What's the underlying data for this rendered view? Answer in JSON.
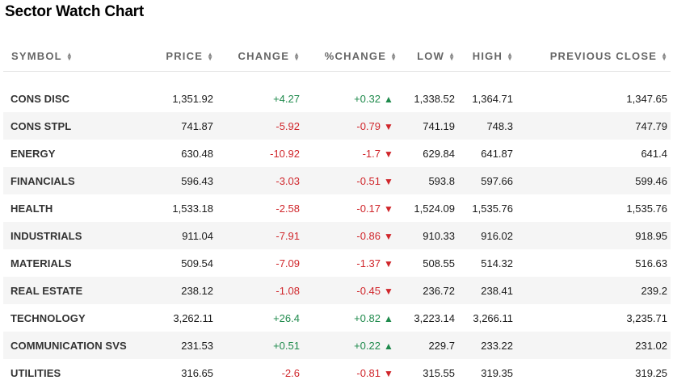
{
  "title": "Sector Watch Chart",
  "columns": {
    "symbol": "SYMBOL",
    "price": "PRICE",
    "change": "CHANGE",
    "pct_change": "%CHANGE",
    "low": "LOW",
    "high": "HIGH",
    "prev_close": "PREVIOUS CLOSE"
  },
  "rows": [
    {
      "symbol": "CONS DISC",
      "price": "1,351.92",
      "change": "+4.27",
      "pct": "+0.32",
      "low": "1,338.52",
      "high": "1,364.71",
      "prev": "1,347.65",
      "dir": "up"
    },
    {
      "symbol": "CONS STPL",
      "price": "741.87",
      "change": "-5.92",
      "pct": "-0.79",
      "low": "741.19",
      "high": "748.3",
      "prev": "747.79",
      "dir": "down"
    },
    {
      "symbol": "ENERGY",
      "price": "630.48",
      "change": "-10.92",
      "pct": "-1.7",
      "low": "629.84",
      "high": "641.87",
      "prev": "641.4",
      "dir": "down"
    },
    {
      "symbol": "FINANCIALS",
      "price": "596.43",
      "change": "-3.03",
      "pct": "-0.51",
      "low": "593.8",
      "high": "597.66",
      "prev": "599.46",
      "dir": "down"
    },
    {
      "symbol": "HEALTH",
      "price": "1,533.18",
      "change": "-2.58",
      "pct": "-0.17",
      "low": "1,524.09",
      "high": "1,535.76",
      "prev": "1,535.76",
      "dir": "down"
    },
    {
      "symbol": "INDUSTRIALS",
      "price": "911.04",
      "change": "-7.91",
      "pct": "-0.86",
      "low": "910.33",
      "high": "916.02",
      "prev": "918.95",
      "dir": "down"
    },
    {
      "symbol": "MATERIALS",
      "price": "509.54",
      "change": "-7.09",
      "pct": "-1.37",
      "low": "508.55",
      "high": "514.32",
      "prev": "516.63",
      "dir": "down"
    },
    {
      "symbol": "REAL ESTATE",
      "price": "238.12",
      "change": "-1.08",
      "pct": "-0.45",
      "low": "236.72",
      "high": "238.41",
      "prev": "239.2",
      "dir": "down"
    },
    {
      "symbol": "TECHNOLOGY",
      "price": "3,262.11",
      "change": "+26.4",
      "pct": "+0.82",
      "low": "3,223.14",
      "high": "3,266.11",
      "prev": "3,235.71",
      "dir": "up"
    },
    {
      "symbol": "COMMUNICATION SVS",
      "price": "231.53",
      "change": "+0.51",
      "pct": "+0.22",
      "low": "229.7",
      "high": "233.22",
      "prev": "231.02",
      "dir": "up"
    },
    {
      "symbol": "UTILITIES",
      "price": "316.65",
      "change": "-2.6",
      "pct": "-0.81",
      "low": "315.55",
      "high": "319.35",
      "prev": "319.25",
      "dir": "down"
    }
  ],
  "icons": {
    "sort": "sort-updown-icon",
    "up": "triangle-up-icon",
    "down": "triangle-down-icon"
  },
  "colors": {
    "positive": "#1f8a4c",
    "negative": "#d0262b",
    "header_text": "#666666",
    "stripe": "#f5f5f5"
  }
}
